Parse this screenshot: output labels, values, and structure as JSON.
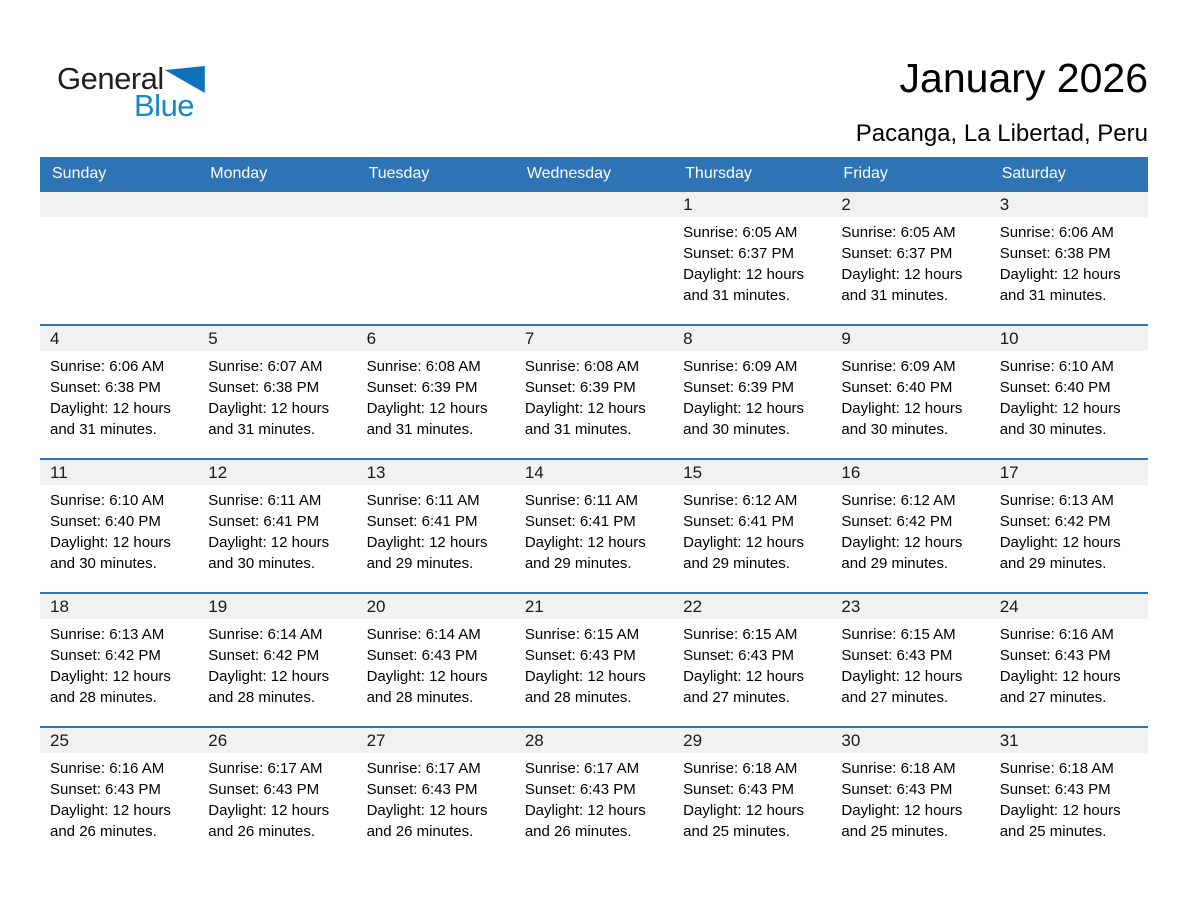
{
  "logo": {
    "general": "General",
    "blue": "Blue"
  },
  "header": {
    "title": "January 2026",
    "subtitle": "Pacanga, La Libertad, Peru"
  },
  "colors": {
    "header_bg": "#2E74B5",
    "row_separator": "#2E74B5",
    "day_band_bg": "#F1F1F1",
    "logo_text_blue": "#1588CB",
    "logo_triangle_blue": "#0F72B8"
  },
  "weekdays": [
    "Sunday",
    "Monday",
    "Tuesday",
    "Wednesday",
    "Thursday",
    "Friday",
    "Saturday"
  ],
  "weeks": [
    [
      {
        "day": "",
        "sunrise": "",
        "sunset": "",
        "daylight": ""
      },
      {
        "day": "",
        "sunrise": "",
        "sunset": "",
        "daylight": ""
      },
      {
        "day": "",
        "sunrise": "",
        "sunset": "",
        "daylight": ""
      },
      {
        "day": "",
        "sunrise": "",
        "sunset": "",
        "daylight": ""
      },
      {
        "day": "1",
        "sunrise": "Sunrise: 6:05 AM",
        "sunset": "Sunset: 6:37 PM",
        "daylight": "Daylight: 12 hours and 31 minutes."
      },
      {
        "day": "2",
        "sunrise": "Sunrise: 6:05 AM",
        "sunset": "Sunset: 6:37 PM",
        "daylight": "Daylight: 12 hours and 31 minutes."
      },
      {
        "day": "3",
        "sunrise": "Sunrise: 6:06 AM",
        "sunset": "Sunset: 6:38 PM",
        "daylight": "Daylight: 12 hours and 31 minutes."
      }
    ],
    [
      {
        "day": "4",
        "sunrise": "Sunrise: 6:06 AM",
        "sunset": "Sunset: 6:38 PM",
        "daylight": "Daylight: 12 hours and 31 minutes."
      },
      {
        "day": "5",
        "sunrise": "Sunrise: 6:07 AM",
        "sunset": "Sunset: 6:38 PM",
        "daylight": "Daylight: 12 hours and 31 minutes."
      },
      {
        "day": "6",
        "sunrise": "Sunrise: 6:08 AM",
        "sunset": "Sunset: 6:39 PM",
        "daylight": "Daylight: 12 hours and 31 minutes."
      },
      {
        "day": "7",
        "sunrise": "Sunrise: 6:08 AM",
        "sunset": "Sunset: 6:39 PM",
        "daylight": "Daylight: 12 hours and 31 minutes."
      },
      {
        "day": "8",
        "sunrise": "Sunrise: 6:09 AM",
        "sunset": "Sunset: 6:39 PM",
        "daylight": "Daylight: 12 hours and 30 minutes."
      },
      {
        "day": "9",
        "sunrise": "Sunrise: 6:09 AM",
        "sunset": "Sunset: 6:40 PM",
        "daylight": "Daylight: 12 hours and 30 minutes."
      },
      {
        "day": "10",
        "sunrise": "Sunrise: 6:10 AM",
        "sunset": "Sunset: 6:40 PM",
        "daylight": "Daylight: 12 hours and 30 minutes."
      }
    ],
    [
      {
        "day": "11",
        "sunrise": "Sunrise: 6:10 AM",
        "sunset": "Sunset: 6:40 PM",
        "daylight": "Daylight: 12 hours and 30 minutes."
      },
      {
        "day": "12",
        "sunrise": "Sunrise: 6:11 AM",
        "sunset": "Sunset: 6:41 PM",
        "daylight": "Daylight: 12 hours and 30 minutes."
      },
      {
        "day": "13",
        "sunrise": "Sunrise: 6:11 AM",
        "sunset": "Sunset: 6:41 PM",
        "daylight": "Daylight: 12 hours and 29 minutes."
      },
      {
        "day": "14",
        "sunrise": "Sunrise: 6:11 AM",
        "sunset": "Sunset: 6:41 PM",
        "daylight": "Daylight: 12 hours and 29 minutes."
      },
      {
        "day": "15",
        "sunrise": "Sunrise: 6:12 AM",
        "sunset": "Sunset: 6:41 PM",
        "daylight": "Daylight: 12 hours and 29 minutes."
      },
      {
        "day": "16",
        "sunrise": "Sunrise: 6:12 AM",
        "sunset": "Sunset: 6:42 PM",
        "daylight": "Daylight: 12 hours and 29 minutes."
      },
      {
        "day": "17",
        "sunrise": "Sunrise: 6:13 AM",
        "sunset": "Sunset: 6:42 PM",
        "daylight": "Daylight: 12 hours and 29 minutes."
      }
    ],
    [
      {
        "day": "18",
        "sunrise": "Sunrise: 6:13 AM",
        "sunset": "Sunset: 6:42 PM",
        "daylight": "Daylight: 12 hours and 28 minutes."
      },
      {
        "day": "19",
        "sunrise": "Sunrise: 6:14 AM",
        "sunset": "Sunset: 6:42 PM",
        "daylight": "Daylight: 12 hours and 28 minutes."
      },
      {
        "day": "20",
        "sunrise": "Sunrise: 6:14 AM",
        "sunset": "Sunset: 6:43 PM",
        "daylight": "Daylight: 12 hours and 28 minutes."
      },
      {
        "day": "21",
        "sunrise": "Sunrise: 6:15 AM",
        "sunset": "Sunset: 6:43 PM",
        "daylight": "Daylight: 12 hours and 28 minutes."
      },
      {
        "day": "22",
        "sunrise": "Sunrise: 6:15 AM",
        "sunset": "Sunset: 6:43 PM",
        "daylight": "Daylight: 12 hours and 27 minutes."
      },
      {
        "day": "23",
        "sunrise": "Sunrise: 6:15 AM",
        "sunset": "Sunset: 6:43 PM",
        "daylight": "Daylight: 12 hours and 27 minutes."
      },
      {
        "day": "24",
        "sunrise": "Sunrise: 6:16 AM",
        "sunset": "Sunset: 6:43 PM",
        "daylight": "Daylight: 12 hours and 27 minutes."
      }
    ],
    [
      {
        "day": "25",
        "sunrise": "Sunrise: 6:16 AM",
        "sunset": "Sunset: 6:43 PM",
        "daylight": "Daylight: 12 hours and 26 minutes."
      },
      {
        "day": "26",
        "sunrise": "Sunrise: 6:17 AM",
        "sunset": "Sunset: 6:43 PM",
        "daylight": "Daylight: 12 hours and 26 minutes."
      },
      {
        "day": "27",
        "sunrise": "Sunrise: 6:17 AM",
        "sunset": "Sunset: 6:43 PM",
        "daylight": "Daylight: 12 hours and 26 minutes."
      },
      {
        "day": "28",
        "sunrise": "Sunrise: 6:17 AM",
        "sunset": "Sunset: 6:43 PM",
        "daylight": "Daylight: 12 hours and 26 minutes."
      },
      {
        "day": "29",
        "sunrise": "Sunrise: 6:18 AM",
        "sunset": "Sunset: 6:43 PM",
        "daylight": "Daylight: 12 hours and 25 minutes."
      },
      {
        "day": "30",
        "sunrise": "Sunrise: 6:18 AM",
        "sunset": "Sunset: 6:43 PM",
        "daylight": "Daylight: 12 hours and 25 minutes."
      },
      {
        "day": "31",
        "sunrise": "Sunrise: 6:18 AM",
        "sunset": "Sunset: 6:43 PM",
        "daylight": "Daylight: 12 hours and 25 minutes."
      }
    ]
  ]
}
